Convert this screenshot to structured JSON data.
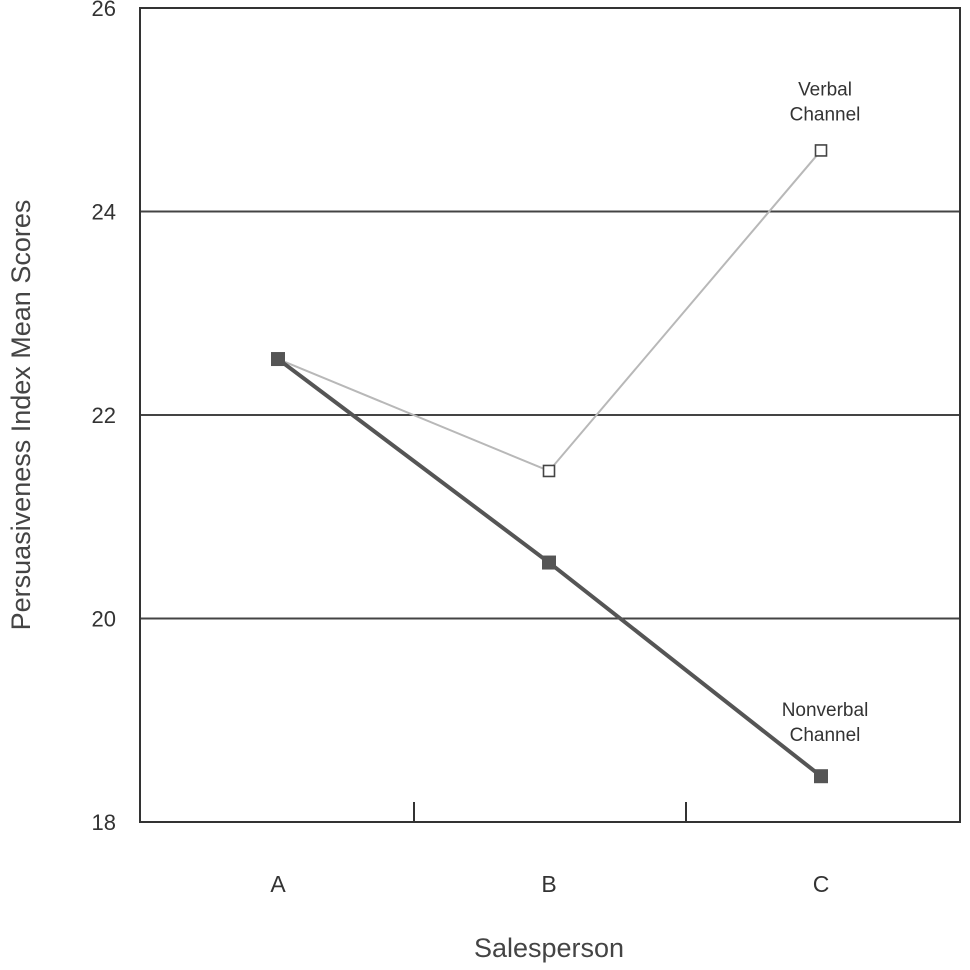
{
  "chart_data": {
    "type": "line",
    "categories": [
      "A",
      "B",
      "C"
    ],
    "xlabel": "Salesperson",
    "ylabel": "Persuasiveness Index Mean Scores",
    "ylim": [
      18,
      26
    ],
    "yticks": [
      18,
      20,
      22,
      24,
      26
    ],
    "grid": true,
    "series": [
      {
        "name": "Verbal Channel",
        "label_lines": [
          "Verbal",
          "Channel"
        ],
        "values": [
          22.55,
          21.45,
          24.6
        ],
        "color": "#b8b8b8",
        "marker": "hollow-square"
      },
      {
        "name": "Nonverbal Channel",
        "label_lines": [
          "Nonverbal",
          "Channel"
        ],
        "values": [
          22.55,
          20.55,
          18.45
        ],
        "color": "#555555",
        "marker": "filled-square"
      }
    ]
  }
}
